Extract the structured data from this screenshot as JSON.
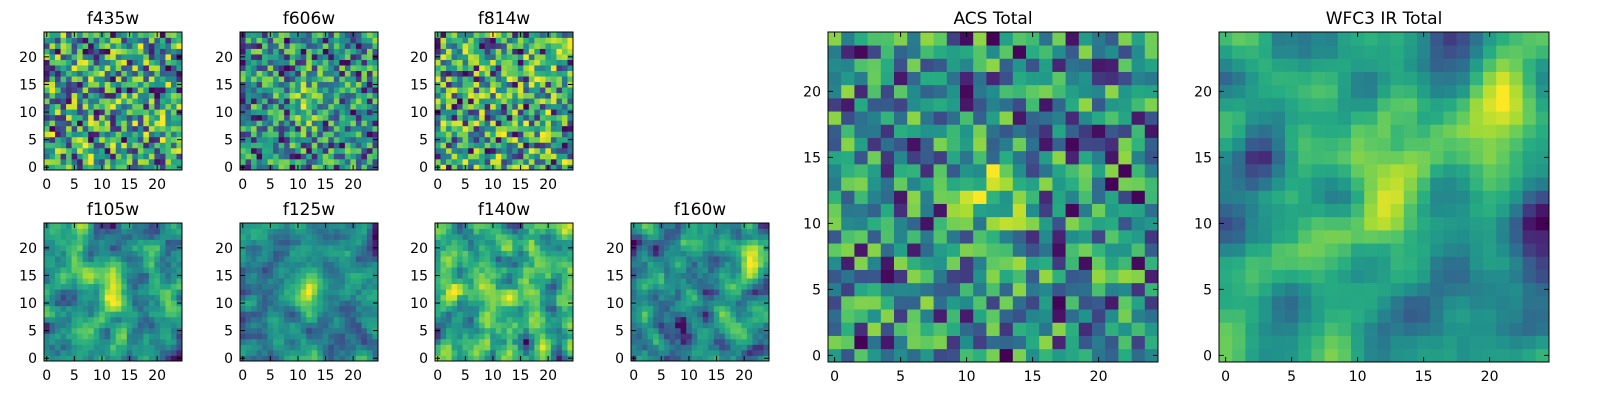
{
  "chart_data": [
    {
      "type": "heatmap",
      "title": "f435w",
      "xticks": [
        0,
        5,
        10,
        15,
        20
      ],
      "yticks": [
        0,
        5,
        10,
        15,
        20
      ],
      "xlim": [
        0,
        24
      ],
      "ylim": [
        0,
        24
      ],
      "grid_size": 25,
      "colormap": "viridis",
      "texture": "fine pixel noise",
      "seed": 11
    },
    {
      "type": "heatmap",
      "title": "f606w",
      "xticks": [
        0,
        5,
        10,
        15,
        20
      ],
      "yticks": [
        0,
        5,
        10,
        15,
        20
      ],
      "xlim": [
        0,
        24
      ],
      "ylim": [
        0,
        24
      ],
      "grid_size": 25,
      "colormap": "viridis",
      "texture": "fine pixel noise, faint central source",
      "seed": 23
    },
    {
      "type": "heatmap",
      "title": "f814w",
      "xticks": [
        0,
        5,
        10,
        15,
        20
      ],
      "yticks": [
        0,
        5,
        10,
        15,
        20
      ],
      "xlim": [
        0,
        24
      ],
      "ylim": [
        0,
        24
      ],
      "grid_size": 25,
      "colormap": "viridis",
      "texture": "fine pixel noise",
      "seed": 37
    },
    {
      "type": "heatmap",
      "title": "f105w",
      "xticks": [
        0,
        5,
        10,
        15,
        20
      ],
      "yticks": [
        0,
        5,
        10,
        15,
        20
      ],
      "xlim": [
        0,
        24
      ],
      "ylim": [
        0,
        24
      ],
      "grid_size": 25,
      "colormap": "viridis",
      "texture": "blotchy noise, bright central source",
      "seed": 41
    },
    {
      "type": "heatmap",
      "title": "f125w",
      "xticks": [
        0,
        5,
        10,
        15,
        20
      ],
      "yticks": [
        0,
        5,
        10,
        15,
        20
      ],
      "xlim": [
        0,
        24
      ],
      "ylim": [
        0,
        24
      ],
      "grid_size": 25,
      "colormap": "viridis",
      "texture": "blotchy noise, bright central source",
      "seed": 53
    },
    {
      "type": "heatmap",
      "title": "f140w",
      "xticks": [
        0,
        5,
        10,
        15,
        20
      ],
      "yticks": [
        0,
        5,
        10,
        15,
        20
      ],
      "xlim": [
        0,
        24
      ],
      "ylim": [
        0,
        24
      ],
      "grid_size": 25,
      "colormap": "viridis",
      "texture": "blotchy noise",
      "seed": 67
    },
    {
      "type": "heatmap",
      "title": "f160w",
      "xticks": [
        0,
        5,
        10,
        15,
        20
      ],
      "yticks": [
        0,
        5,
        10,
        15,
        20
      ],
      "xlim": [
        0,
        24
      ],
      "ylim": [
        0,
        24
      ],
      "grid_size": 25,
      "colormap": "viridis",
      "texture": "blotchy noise, bright upper-right source",
      "seed": 79
    },
    {
      "type": "heatmap",
      "title": "ACS Total",
      "xticks": [
        0,
        5,
        10,
        15,
        20
      ],
      "yticks": [
        0,
        5,
        10,
        15,
        20
      ],
      "xlim": [
        0,
        24
      ],
      "ylim": [
        0,
        24
      ],
      "grid_size": 25,
      "colormap": "viridis",
      "texture": "pixel noise, bright central column",
      "seed": 97
    },
    {
      "type": "heatmap",
      "title": "WFC3 IR Total",
      "xticks": [
        0,
        5,
        10,
        15,
        20
      ],
      "yticks": [
        0,
        5,
        10,
        15,
        20
      ],
      "xlim": [
        0,
        24
      ],
      "ylim": [
        0,
        24
      ],
      "grid_size": 25,
      "colormap": "viridis",
      "texture": "smooth noise, bright centre and upper-right",
      "seed": 113
    }
  ]
}
